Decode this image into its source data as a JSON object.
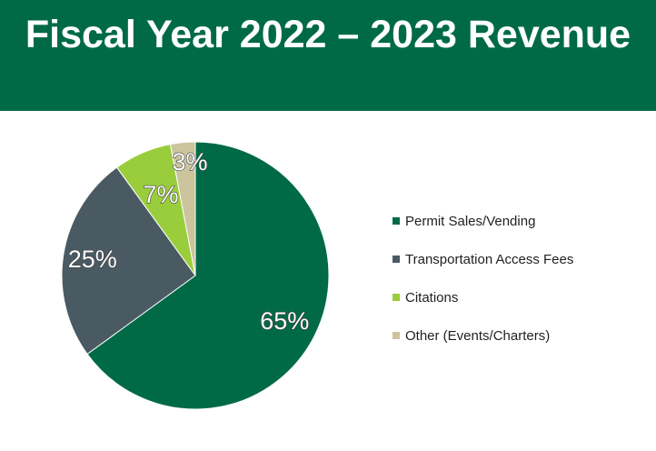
{
  "header": {
    "title": "Fiscal Year 2022 – 2023 Revenue",
    "background": "#006a47"
  },
  "chart_data": {
    "type": "pie",
    "title": "Fiscal Year 2022 – 2023 Revenue",
    "categories": [
      "Permit Sales/Vending",
      "Transportation Access Fees",
      "Citations",
      "Other (Events/Charters)"
    ],
    "values": [
      65,
      25,
      7,
      3
    ],
    "labels": [
      "65%",
      "25%",
      "7%",
      "3%"
    ],
    "colors": [
      "#006a47",
      "#4a5a63",
      "#9acd3c",
      "#cbc49c"
    ],
    "legend_position": "right"
  }
}
